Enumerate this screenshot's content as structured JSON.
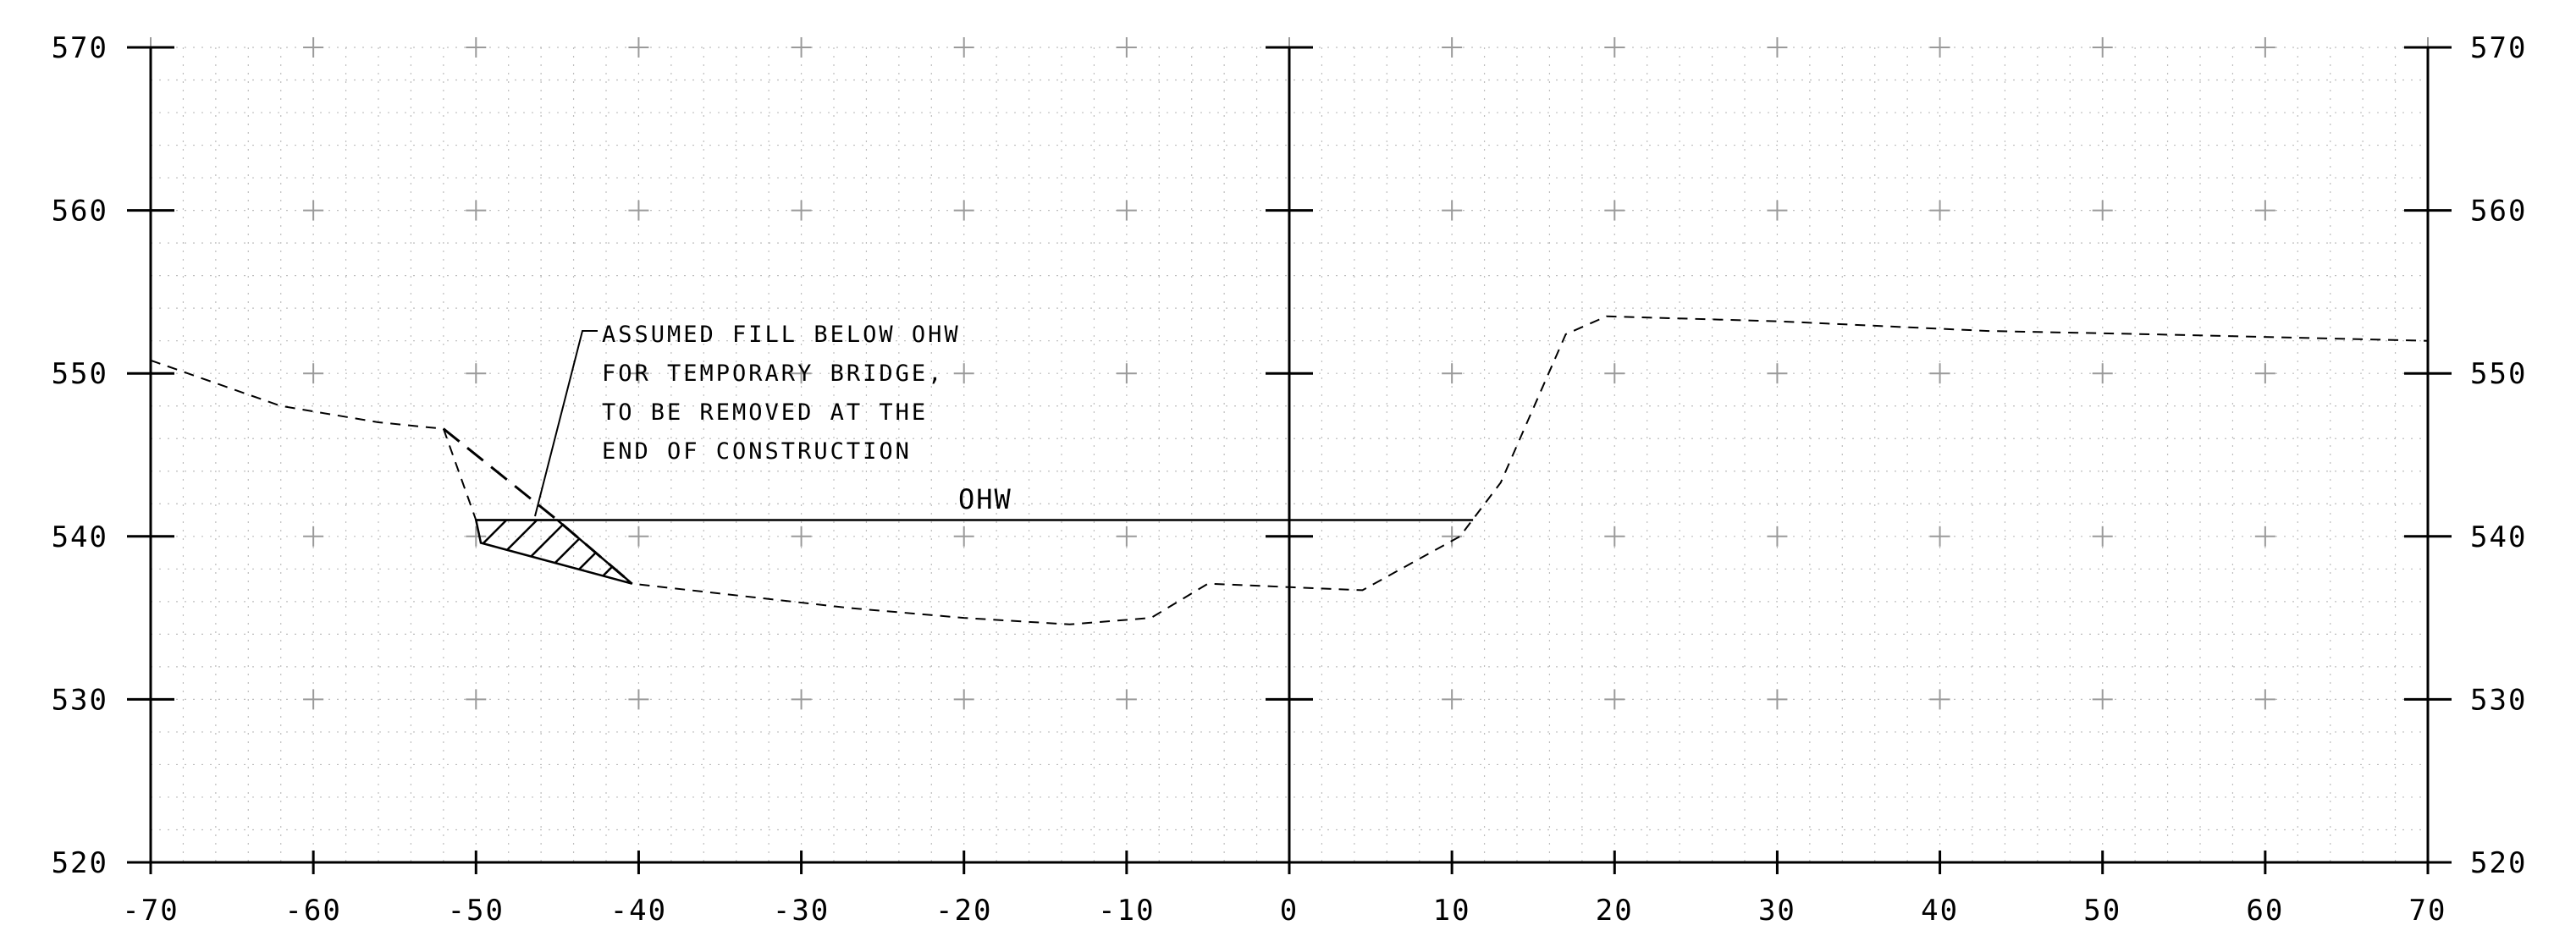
{
  "chart_data": {
    "type": "line",
    "title": "",
    "xlabel": "",
    "ylabel": "",
    "xlim": [
      -70,
      70
    ],
    "ylim": [
      520,
      570
    ],
    "x_ticks": [
      -70,
      -60,
      -50,
      -40,
      -30,
      -20,
      -10,
      0,
      10,
      20,
      30,
      40,
      50,
      60,
      70
    ],
    "y_ticks": [
      520,
      530,
      540,
      550,
      560,
      570
    ],
    "x_tick_labels": [
      "-70",
      "-60",
      "-50",
      "-40",
      "-30",
      "-20",
      "-10",
      "0",
      "10",
      "20",
      "30",
      "40",
      "50",
      "60",
      "70"
    ],
    "y_tick_labels": [
      "520",
      "530",
      "540",
      "550",
      "560",
      "570"
    ],
    "grid": "dotted minor grid with plus markers",
    "series": [
      {
        "style": "dashed",
        "points": [
          [
            -70,
            550.8
          ],
          [
            -62,
            548.0
          ],
          [
            -56,
            547.0
          ],
          [
            -52,
            546.6
          ],
          [
            -50,
            541.0
          ],
          [
            -49.7,
            539.6
          ],
          [
            -40.4,
            537.1
          ],
          [
            -27,
            535.6
          ],
          [
            -20,
            535.0
          ],
          [
            -13.5,
            534.6
          ],
          [
            -8.5,
            535.0
          ],
          [
            -5,
            537.1
          ],
          [
            4.5,
            536.7
          ],
          [
            10.5,
            540.0
          ],
          [
            13,
            543.3
          ],
          [
            17,
            552.4
          ],
          [
            19.5,
            553.5
          ],
          [
            30,
            553.2
          ],
          [
            43,
            552.6
          ],
          [
            53,
            552.4
          ],
          [
            70,
            552.0
          ]
        ]
      },
      {
        "style": "fill",
        "points": [
          [
            -52,
            546.6
          ],
          [
            -45,
            541.0
          ],
          [
            -40.4,
            537.1
          ]
        ]
      },
      {
        "style": "solid",
        "points": [
          [
            -50,
            541.0
          ],
          [
            11.3,
            541.0
          ]
        ]
      }
    ],
    "fill_region": [
      [
        -50,
        541.0
      ],
      [
        -45,
        541.0
      ],
      [
        -40.4,
        537.1
      ],
      [
        -49.7,
        539.6
      ]
    ],
    "annotations": {
      "ohw_label": "OHW",
      "fill_note": [
        "ASSUMED FILL BELOW OHW",
        "FOR TEMPORARY BRIDGE,",
        "TO BE REMOVED AT THE",
        "END OF CONSTRUCTION"
      ]
    },
    "center_axis_x": 0
  }
}
